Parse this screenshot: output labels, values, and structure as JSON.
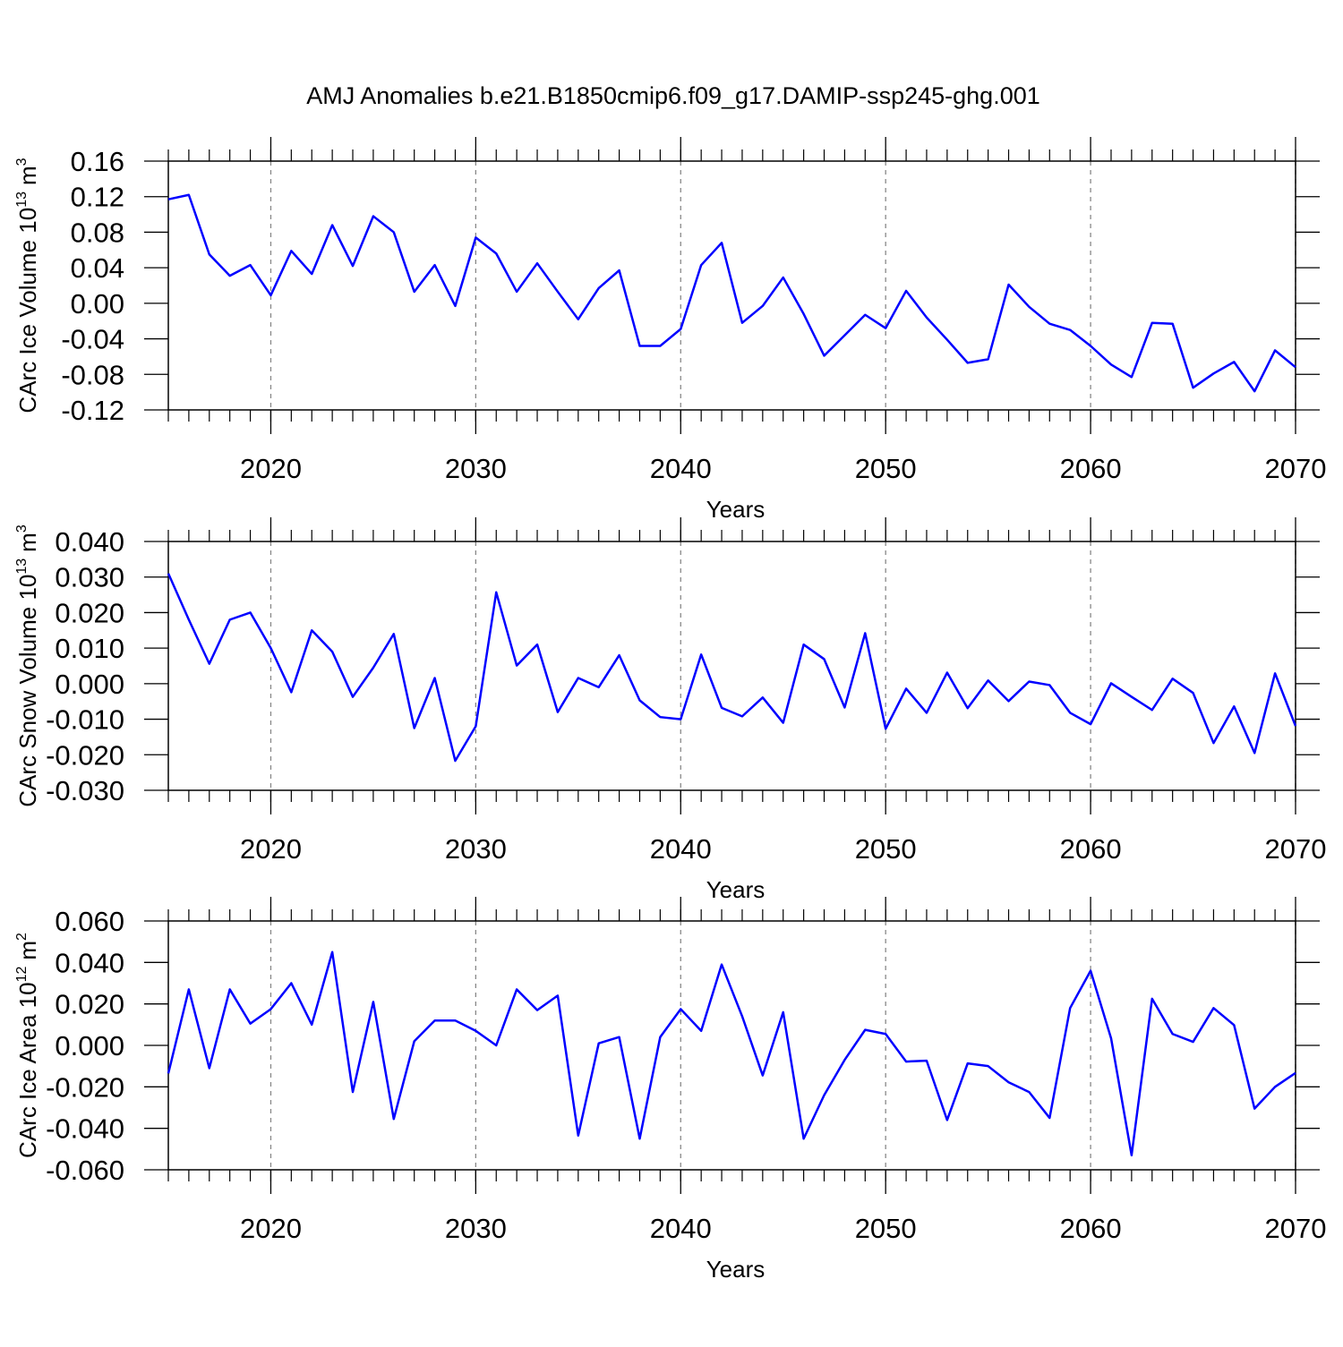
{
  "title": "AMJ Anomalies b.e21.B1850cmip6.f09_g17.DAMIP-ssp245-ghg.001",
  "chart_data": [
    {
      "type": "line",
      "ylabel": {
        "text": "CArc Ice Volume 10",
        "exp": "13",
        "unit": "m",
        "unit_exp": "3"
      },
      "xlabel": "Years",
      "x": [
        2015,
        2016,
        2017,
        2018,
        2019,
        2020,
        2021,
        2022,
        2023,
        2024,
        2025,
        2026,
        2027,
        2028,
        2029,
        2030,
        2031,
        2032,
        2033,
        2034,
        2035,
        2036,
        2037,
        2038,
        2039,
        2040,
        2041,
        2042,
        2043,
        2044,
        2045,
        2046,
        2047,
        2048,
        2049,
        2050,
        2051,
        2052,
        2053,
        2054,
        2055,
        2056,
        2057,
        2058,
        2059,
        2060,
        2061,
        2062,
        2063,
        2064,
        2065,
        2066,
        2067,
        2068,
        2069,
        2070
      ],
      "series": [
        {
          "color": "#0000ff",
          "values": [
            0.117,
            0.122,
            0.055,
            0.031,
            0.043,
            0.009,
            0.059,
            0.033,
            0.088,
            0.042,
            0.098,
            0.08,
            0.013,
            0.043,
            -0.003,
            0.074,
            0.056,
            0.013,
            0.045,
            0.013,
            -0.018,
            0.017,
            0.037,
            -0.048,
            -0.048,
            -0.029,
            0.043,
            0.068,
            -0.022,
            -0.003,
            0.029,
            -0.012,
            -0.059,
            -0.036,
            -0.013,
            -0.028,
            0.014,
            -0.016,
            -0.041,
            -0.067,
            -0.063,
            0.021,
            -0.004,
            -0.023,
            -0.03,
            -0.048,
            -0.069,
            -0.083,
            -0.022,
            -0.023,
            -0.095,
            -0.079,
            -0.066,
            -0.099,
            -0.053,
            -0.072
          ]
        }
      ],
      "xlim": [
        2015,
        2070
      ],
      "xticks": [
        2020,
        2030,
        2040,
        2050,
        2060,
        2070
      ],
      "ylim": [
        -0.12,
        0.16
      ],
      "yticks": [
        -0.12,
        -0.08,
        -0.04,
        {
          "value": 0,
          "label": "0.00"
        },
        0.04,
        0.08,
        0.12,
        0.16
      ],
      "grid": "x"
    },
    {
      "type": "line",
      "ylabel": {
        "text": "CArc Snow Volume 10",
        "exp": "13",
        "unit": "m",
        "unit_exp": "3"
      },
      "xlabel": "Years",
      "x": [
        2015,
        2016,
        2017,
        2018,
        2019,
        2020,
        2021,
        2022,
        2023,
        2024,
        2025,
        2026,
        2027,
        2028,
        2029,
        2030,
        2031,
        2032,
        2033,
        2034,
        2035,
        2036,
        2037,
        2038,
        2039,
        2040,
        2041,
        2042,
        2043,
        2044,
        2045,
        2046,
        2047,
        2048,
        2049,
        2050,
        2051,
        2052,
        2053,
        2054,
        2055,
        2056,
        2057,
        2058,
        2059,
        2060,
        2061,
        2062,
        2063,
        2064,
        2065,
        2066,
        2067,
        2068,
        2069,
        2070
      ],
      "series": [
        {
          "color": "#0000ff",
          "values": [
            0.031,
            0.018,
            0.0056,
            0.018,
            0.02,
            0.01,
            -0.0024,
            0.015,
            0.009,
            -0.0037,
            0.0045,
            0.014,
            -0.0125,
            0.0016,
            -0.0217,
            -0.012,
            0.0257,
            0.0051,
            0.011,
            -0.008,
            0.0016,
            -0.001,
            0.008,
            -0.0047,
            -0.0094,
            -0.01,
            0.0082,
            -0.0068,
            -0.0092,
            -0.0039,
            -0.011,
            0.011,
            0.0069,
            -0.0067,
            0.0142,
            -0.0127,
            -0.0014,
            -0.0082,
            0.0031,
            -0.0069,
            0.0009,
            -0.0049,
            0.0006,
            -0.0004,
            -0.0082,
            -0.0114,
            0.0001,
            -0.0037,
            -0.0074,
            0.0014,
            -0.0026,
            -0.0167,
            -0.0064,
            -0.0195,
            0.0029,
            -0.0119
          ]
        }
      ],
      "xlim": [
        2015,
        2070
      ],
      "xticks": [
        2020,
        2030,
        2040,
        2050,
        2060,
        2070
      ],
      "ylim": [
        -0.03,
        0.04
      ],
      "yticks": [
        {
          "value": -0.03,
          "label": "-0.030"
        },
        {
          "value": -0.02,
          "label": "-0.020"
        },
        {
          "value": -0.01,
          "label": "-0.010"
        },
        {
          "value": 0,
          "label": "0.000"
        },
        {
          "value": 0.01,
          "label": "0.010"
        },
        {
          "value": 0.02,
          "label": "0.020"
        },
        {
          "value": 0.03,
          "label": "0.030"
        },
        {
          "value": 0.04,
          "label": "0.040"
        }
      ],
      "grid": "x"
    },
    {
      "type": "line",
      "ylabel": {
        "text": "CArc Ice Area 10",
        "exp": "12",
        "unit": "m",
        "unit_exp": "2"
      },
      "xlabel": "Years",
      "x": [
        2015,
        2016,
        2017,
        2018,
        2019,
        2020,
        2021,
        2022,
        2023,
        2024,
        2025,
        2026,
        2027,
        2028,
        2029,
        2030,
        2031,
        2032,
        2033,
        2034,
        2035,
        2036,
        2037,
        2038,
        2039,
        2040,
        2041,
        2042,
        2043,
        2044,
        2045,
        2046,
        2047,
        2048,
        2049,
        2050,
        2051,
        2052,
        2053,
        2054,
        2055,
        2056,
        2057,
        2058,
        2059,
        2060,
        2061,
        2062,
        2063,
        2064,
        2065,
        2066,
        2067,
        2068,
        2069,
        2070
      ],
      "series": [
        {
          "color": "#0000ff",
          "values": [
            -0.0135,
            0.027,
            -0.011,
            0.027,
            0.0105,
            0.0175,
            0.03,
            0.01,
            0.045,
            -0.0225,
            0.021,
            -0.0355,
            0.002,
            0.012,
            0.012,
            0.007,
            0.0,
            0.027,
            0.017,
            0.024,
            -0.0435,
            0.001,
            0.004,
            -0.045,
            0.004,
            0.0175,
            0.007,
            0.039,
            0.014,
            -0.0145,
            0.016,
            -0.045,
            -0.024,
            -0.007,
            0.0075,
            0.0055,
            -0.0078,
            -0.0074,
            -0.036,
            -0.0087,
            -0.01,
            -0.0178,
            -0.0225,
            -0.035,
            0.018,
            0.036,
            0.0034,
            -0.053,
            0.0225,
            0.0055,
            0.0017,
            0.018,
            0.0098,
            -0.0305,
            -0.02,
            -0.0133
          ]
        }
      ],
      "xlim": [
        2015,
        2070
      ],
      "xticks": [
        2020,
        2030,
        2040,
        2050,
        2060,
        2070
      ],
      "ylim": [
        -0.06,
        0.06
      ],
      "yticks": [
        {
          "value": -0.06,
          "label": "-0.060"
        },
        {
          "value": -0.04,
          "label": "-0.040"
        },
        {
          "value": -0.02,
          "label": "-0.020"
        },
        {
          "value": 0,
          "label": "0.000"
        },
        {
          "value": 0.02,
          "label": "0.020"
        },
        {
          "value": 0.04,
          "label": "0.040"
        },
        {
          "value": 0.06,
          "label": "0.060"
        }
      ],
      "grid": "x"
    }
  ]
}
